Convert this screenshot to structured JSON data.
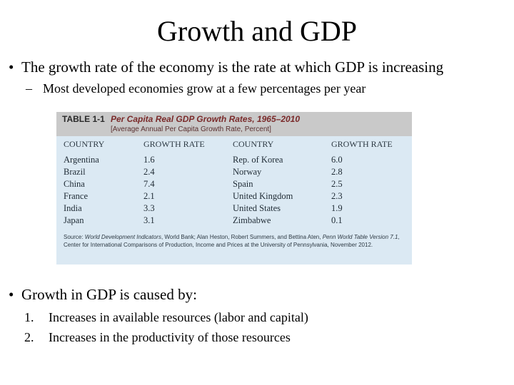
{
  "slide": {
    "title": "Growth and GDP",
    "bullet_glyph": "•",
    "dash_glyph": "–",
    "bullet1": "The growth rate of the economy is the rate at which GDP is increasing",
    "sub1": "Most developed economies grow at a few percentages per year",
    "bullet2": "Growth in GDP is caused by:",
    "list": [
      {
        "num": "1.",
        "text": "Increases in available resources (labor and capital)"
      },
      {
        "num": "2.",
        "text": "Increases in the productivity of those resources"
      }
    ]
  },
  "table": {
    "number": "TABLE 1-1",
    "title": "Per Capita Real GDP Growth Rates, 1965–2010",
    "subtitle": "[Average Annual Per Capita Growth Rate, Percent]",
    "headers": [
      "COUNTRY",
      "GROWTH RATE",
      "COUNTRY",
      "GROWTH RATE"
    ],
    "rows": [
      [
        "Argentina",
        "1.6",
        "Rep. of Korea",
        "6.0"
      ],
      [
        "Brazil",
        "2.4",
        "Norway",
        "2.8"
      ],
      [
        "China",
        "7.4",
        "Spain",
        "2.5"
      ],
      [
        "France",
        "2.1",
        "United Kingdom",
        "2.3"
      ],
      [
        "India",
        "3.3",
        "United States",
        "1.9"
      ],
      [
        "Japan",
        "3.1",
        "Zimbabwe",
        "0.1"
      ]
    ],
    "source_prefix": "Source: ",
    "source_italic1": "World Development Indicators",
    "source_mid": ", World Bank; Alan Heston, Robert Summers, and Bettina Aten, ",
    "source_italic2": "Penn World Table Version 7.1",
    "source_end": ", Center for International Comparisons of Production, Income and Prices at the University of Pennsylvania, November 2012."
  }
}
